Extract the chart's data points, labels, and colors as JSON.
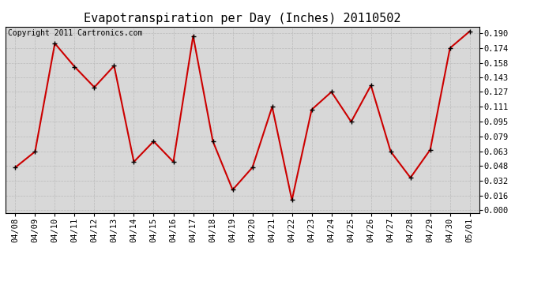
{
  "title": "Evapotranspiration per Day (Inches) 20110502",
  "copyright": "Copyright 2011 Cartronics.com",
  "dates": [
    "04/08",
    "04/09",
    "04/10",
    "04/11",
    "04/12",
    "04/13",
    "04/14",
    "04/15",
    "04/16",
    "04/17",
    "04/18",
    "04/19",
    "04/20",
    "04/21",
    "04/22",
    "04/23",
    "04/24",
    "04/25",
    "04/26",
    "04/27",
    "04/28",
    "04/29",
    "04/30",
    "05/01"
  ],
  "values": [
    0.046,
    0.063,
    0.179,
    0.154,
    0.132,
    0.155,
    0.052,
    0.074,
    0.052,
    0.187,
    0.074,
    0.022,
    0.046,
    0.111,
    0.011,
    0.108,
    0.127,
    0.095,
    0.134,
    0.063,
    0.035,
    0.065,
    0.174,
    0.192
  ],
  "line_color": "#cc0000",
  "marker": "+",
  "marker_color": "#000000",
  "bg_color": "#ffffff",
  "plot_bg_color": "#d8d8d8",
  "grid_color": "#bbbbbb",
  "ylim_min": -0.003,
  "ylim_max": 0.197,
  "yticks": [
    0.0,
    0.016,
    0.032,
    0.048,
    0.063,
    0.079,
    0.095,
    0.111,
    0.127,
    0.143,
    0.158,
    0.174,
    0.19
  ],
  "title_fontsize": 11,
  "tick_fontsize": 7.5,
  "copyright_fontsize": 7
}
